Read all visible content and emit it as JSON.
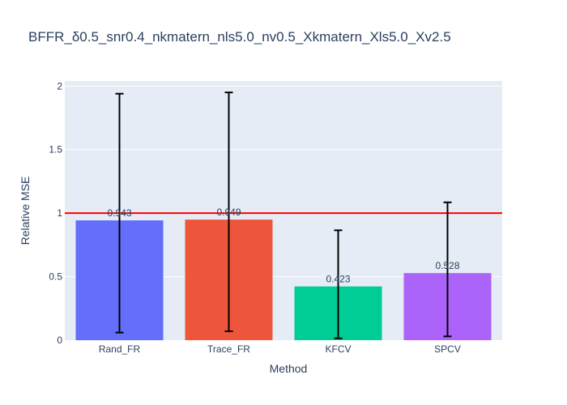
{
  "chart_data": {
    "type": "bar",
    "title": "BFFR_δ0.5_snr0.4_nkmatern_nls5.0_nv0.5_Xkmatern_Xls5.0_Xv2.5",
    "xlabel": "Method",
    "ylabel": "Relative MSE",
    "categories": [
      "Rand_FR",
      "Trace_FR",
      "KFCV",
      "SPCV"
    ],
    "values": [
      0.943,
      0.949,
      0.423,
      0.528
    ],
    "value_labels": [
      "0.943",
      "0.949",
      "0.423",
      "0.528"
    ],
    "error_low": [
      0.06,
      0.07,
      0.015,
      0.03
    ],
    "error_high": [
      1.94,
      1.95,
      0.865,
      1.085
    ],
    "colors": [
      "#636efa",
      "#ef553b",
      "#00cc96",
      "#ab63fa"
    ],
    "ylim": [
      0,
      2.04
    ],
    "yticks": [
      0,
      0.5,
      1,
      1.5,
      2
    ],
    "ytick_labels": [
      "0",
      "0.5",
      "1",
      "1.5",
      "2"
    ],
    "reference_line": {
      "y": 1,
      "color": "#ff0000"
    },
    "grid": true,
    "legend": "none",
    "plot_bgcolor": "#e5ecf6"
  }
}
